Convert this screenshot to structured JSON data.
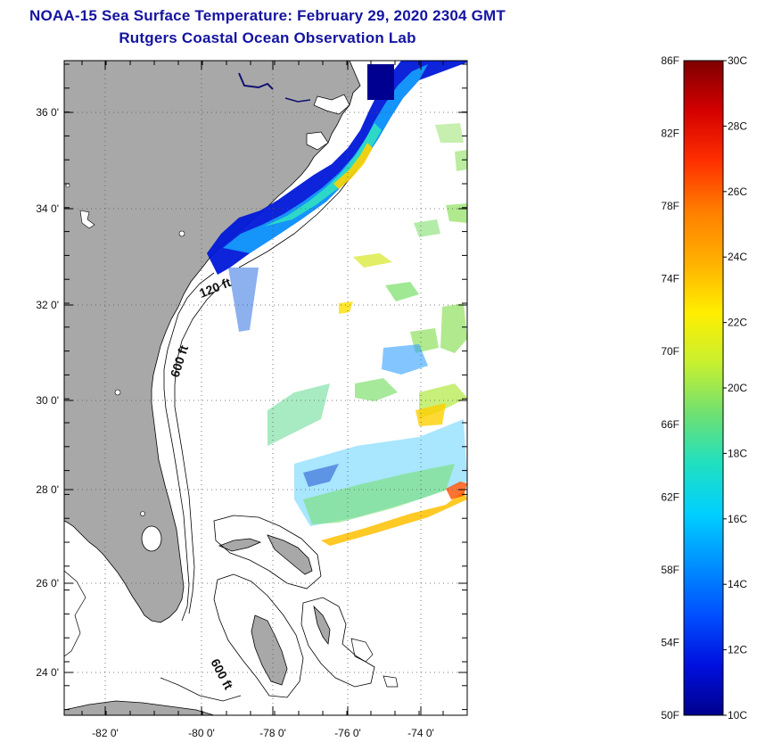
{
  "header": {
    "title": "NOAA-15 Sea Surface Temperature:  February 29, 2020 2304 GMT",
    "subtitle": "Rutgers Coastal Ocean Observation Lab"
  },
  "map": {
    "lat_labels": [
      "36 0'",
      "34 0'",
      "32 0'",
      "30 0'",
      "28 0'",
      "26 0'",
      "24 0'"
    ],
    "lon_labels": [
      "-82 0'",
      "-80 0'",
      "-78 0'",
      "-76 0'",
      "-74 0'"
    ],
    "contour_labels": {
      "shallow": "120 ft",
      "deep": "600 ft",
      "deep_bahamas": "600 ft"
    },
    "colors": {
      "land": "#a8a8a8",
      "ocean": "#ffffff",
      "coastline": "#000000"
    }
  },
  "color_scale": {
    "fahrenheit": [
      "86F",
      "82F",
      "78F",
      "74F",
      "70F",
      "66F",
      "62F",
      "58F",
      "54F",
      "50F"
    ],
    "celsius": [
      "30C",
      "28C",
      "26C",
      "24C",
      "22C",
      "20C",
      "18C",
      "16C",
      "14C",
      "12C",
      "10C"
    ],
    "gradient": [
      "#7f0000",
      "#d40000",
      "#ff3000",
      "#ff7f00",
      "#ffb000",
      "#ffee00",
      "#c8f030",
      "#70e070",
      "#20e0c0",
      "#00d0ff",
      "#0090ff",
      "#0050ff",
      "#0010e0",
      "#00008c"
    ]
  }
}
